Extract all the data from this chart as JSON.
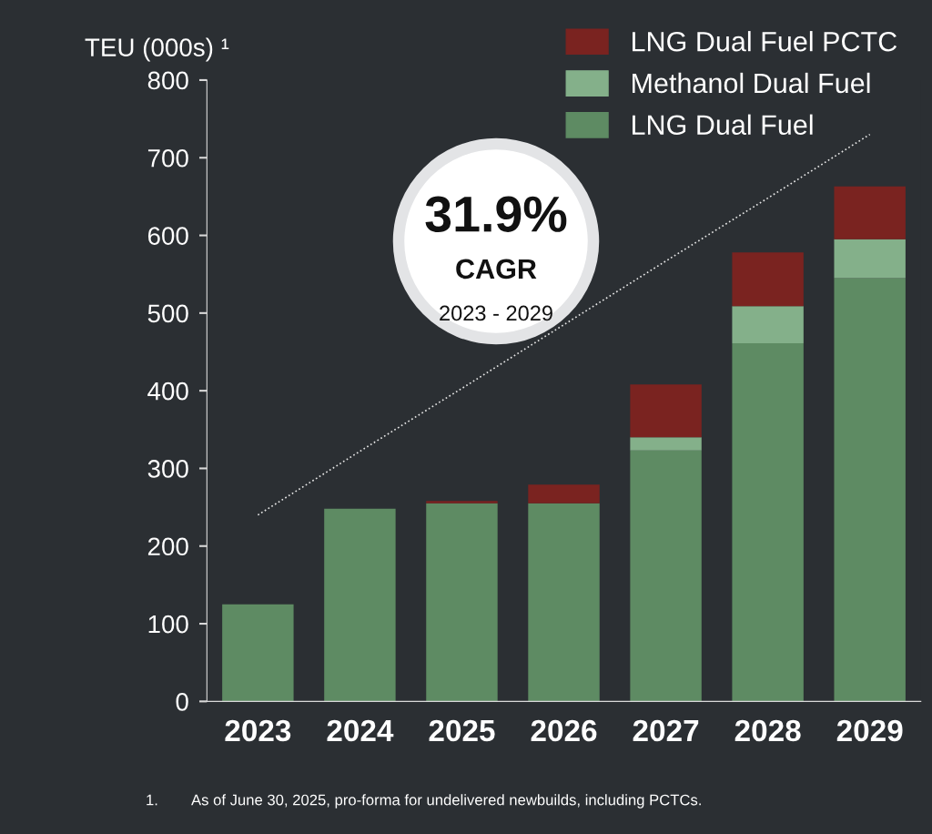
{
  "chart_data": {
    "type": "bar",
    "stacked": true,
    "ylabel": "TEU (000s) ¹",
    "categories": [
      "2023",
      "2024",
      "2025",
      "2026",
      "2027",
      "2028",
      "2029"
    ],
    "series": [
      {
        "name": "LNG Dual Fuel",
        "color": "#5e8b63",
        "values": [
          125,
          248,
          255,
          255,
          323,
          461,
          545
        ]
      },
      {
        "name": "Methanol Dual Fuel",
        "color": "#84b08a",
        "values": [
          0,
          0,
          0,
          0,
          17,
          48,
          50
        ]
      },
      {
        "name": "LNG Dual Fuel PCTC",
        "color": "#7a2320",
        "values": [
          0,
          0,
          3,
          24,
          68,
          69,
          68
        ]
      },
      {
        "type": "line",
        "color": "#e6e6e6",
        "line_style": "dotted",
        "values": [
          240,
          322,
          403,
          485,
          567,
          648,
          730
        ]
      }
    ],
    "ylim": [
      0,
      800
    ],
    "yticks": [
      0,
      100,
      200,
      300,
      400,
      500,
      600,
      700,
      800
    ],
    "grid": false,
    "legend": "top right",
    "annotations": [
      "31.9%",
      "CAGR",
      "2023 - 2029",
      "1.        As of June 30, 2025, pro-forma for undelivered newbuilds, including PCTCs."
    ]
  }
}
